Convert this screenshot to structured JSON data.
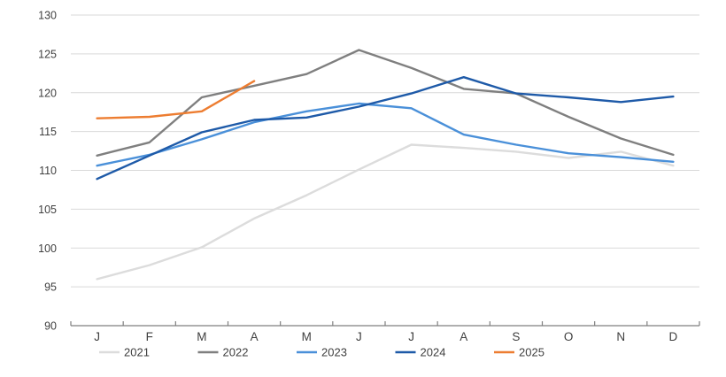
{
  "chart_data": {
    "type": "line",
    "title": "",
    "x_categories": [
      "J",
      "F",
      "M",
      "A",
      "M",
      "J",
      "J",
      "A",
      "S",
      "O",
      "N",
      "D"
    ],
    "y_axis": {
      "min": 90,
      "max": 130,
      "step": 5,
      "tick_labels": [
        "90",
        "95",
        "100",
        "105",
        "110",
        "115",
        "120",
        "125",
        "130"
      ]
    },
    "grid": "horizontal",
    "legend_position": "bottom",
    "axis_color": "#7f7f7f",
    "gridline_color": "#d9d9d9",
    "label_color": "#3f3f3f",
    "series": [
      {
        "name": "2021",
        "color": "#dcdcdc",
        "values": [
          96.0,
          97.8,
          100.1,
          103.8,
          106.8,
          110.1,
          113.3,
          112.9,
          112.4,
          111.6,
          112.4,
          110.6
        ]
      },
      {
        "name": "2022",
        "color": "#7f7f7f",
        "values": [
          111.9,
          113.6,
          119.4,
          120.9,
          122.4,
          125.5,
          123.2,
          120.5,
          119.9,
          116.9,
          114.1,
          112.0
        ]
      },
      {
        "name": "2023",
        "color": "#4a90d9",
        "values": [
          110.6,
          112.0,
          114.0,
          116.2,
          117.6,
          118.6,
          118.0,
          114.6,
          113.3,
          112.2,
          111.7,
          111.1
        ]
      },
      {
        "name": "2024",
        "color": "#1e5aa8",
        "values": [
          108.9,
          111.9,
          114.9,
          116.5,
          116.8,
          118.2,
          119.9,
          122.0,
          119.9,
          119.4,
          118.8,
          119.5
        ]
      },
      {
        "name": "2025",
        "color": "#ed7d31",
        "values": [
          116.7,
          116.9,
          117.6,
          121.5
        ]
      }
    ]
  }
}
